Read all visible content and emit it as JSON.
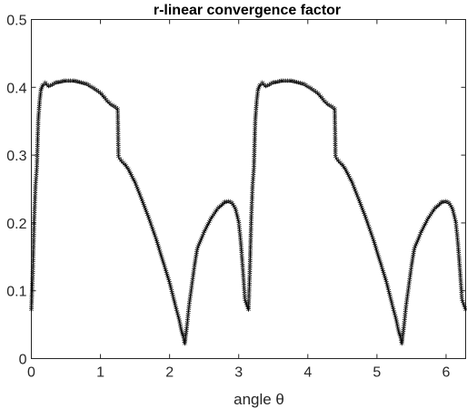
{
  "chart_data": {
    "type": "line",
    "title": "r-linear convergence factor",
    "xlabel": "angle θ",
    "ylabel": "",
    "xlim": [
      0,
      6.2832
    ],
    "ylim": [
      0,
      0.5
    ],
    "xticks": [
      0,
      1,
      2,
      3,
      4,
      5,
      6
    ],
    "yticks": [
      0,
      0.1,
      0.2,
      0.3,
      0.4,
      0.5
    ],
    "grid": false,
    "box": true,
    "marker": "*",
    "line_color": "#000000",
    "series": [
      {
        "x": [
          0.0,
          0.02,
          0.04,
          0.06,
          0.08,
          0.1,
          0.12,
          0.14,
          0.17,
          0.2,
          0.25,
          0.3,
          0.35,
          0.4,
          0.5,
          0.6,
          0.7,
          0.8,
          0.9,
          1.0,
          1.1,
          1.15,
          1.2,
          1.25,
          1.26,
          1.3,
          1.35,
          1.4,
          1.5,
          1.6,
          1.7,
          1.8,
          1.9,
          2.0,
          2.05,
          2.1,
          2.14,
          2.17,
          2.2,
          2.22,
          2.25,
          2.28,
          2.32,
          2.36,
          2.4,
          2.5,
          2.6,
          2.7,
          2.8,
          2.85,
          2.9,
          2.95,
          3.0,
          3.03,
          3.06,
          3.09,
          3.1416,
          3.16,
          3.18,
          3.2,
          3.22,
          3.24,
          3.26,
          3.28,
          3.31,
          3.34,
          3.39,
          3.44,
          3.49,
          3.54,
          3.64,
          3.74,
          3.84,
          3.94,
          4.04,
          4.14,
          4.24,
          4.29,
          4.34,
          4.39,
          4.4,
          4.44,
          4.49,
          4.54,
          4.64,
          4.74,
          4.84,
          4.94,
          5.04,
          5.14,
          5.19,
          5.24,
          5.28,
          5.31,
          5.34,
          5.36,
          5.39,
          5.42,
          5.46,
          5.5,
          5.54,
          5.64,
          5.74,
          5.84,
          5.94,
          5.99,
          6.04,
          6.09,
          6.14,
          6.17,
          6.2,
          6.23,
          6.2832
        ],
        "values": [
          0.07,
          0.125,
          0.2,
          0.253,
          0.28,
          0.35,
          0.378,
          0.395,
          0.402,
          0.405,
          0.4,
          0.402,
          0.405,
          0.406,
          0.408,
          0.408,
          0.406,
          0.403,
          0.397,
          0.39,
          0.378,
          0.373,
          0.37,
          0.366,
          0.296,
          0.29,
          0.285,
          0.278,
          0.258,
          0.232,
          0.205,
          0.176,
          0.143,
          0.11,
          0.09,
          0.07,
          0.055,
          0.04,
          0.03,
          0.02,
          0.045,
          0.075,
          0.105,
          0.135,
          0.16,
          0.185,
          0.205,
          0.22,
          0.229,
          0.23,
          0.228,
          0.22,
          0.2,
          0.17,
          0.13,
          0.085,
          0.07,
          0.125,
          0.2,
          0.253,
          0.28,
          0.35,
          0.378,
          0.395,
          0.402,
          0.405,
          0.4,
          0.402,
          0.405,
          0.406,
          0.408,
          0.408,
          0.406,
          0.403,
          0.397,
          0.39,
          0.378,
          0.373,
          0.37,
          0.366,
          0.296,
          0.29,
          0.285,
          0.278,
          0.258,
          0.232,
          0.205,
          0.176,
          0.143,
          0.11,
          0.09,
          0.07,
          0.055,
          0.04,
          0.03,
          0.02,
          0.045,
          0.075,
          0.105,
          0.135,
          0.16,
          0.185,
          0.205,
          0.22,
          0.229,
          0.23,
          0.228,
          0.22,
          0.2,
          0.17,
          0.13,
          0.085,
          0.07
        ]
      }
    ]
  }
}
